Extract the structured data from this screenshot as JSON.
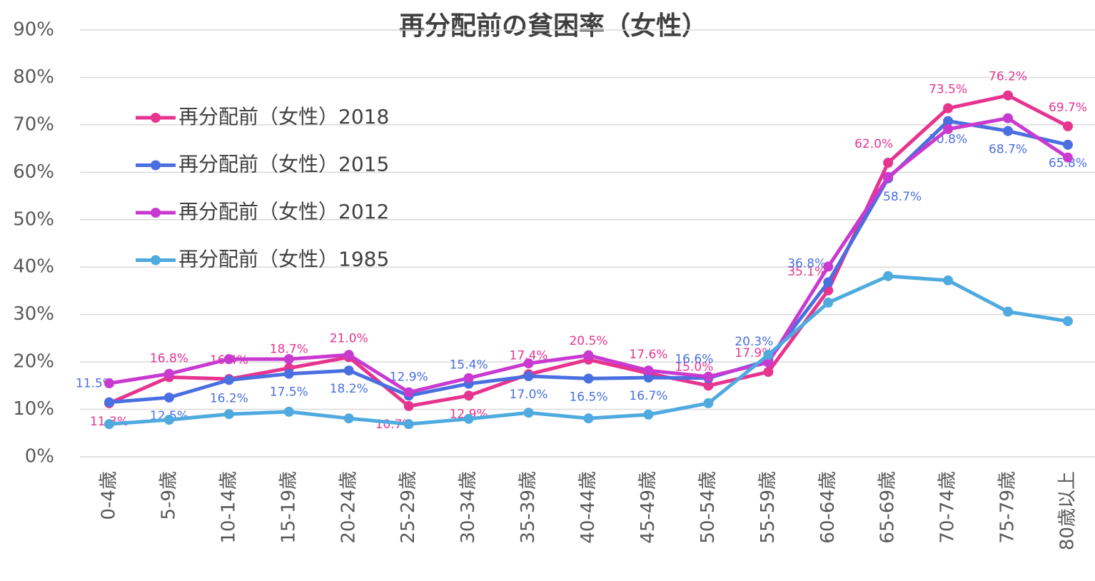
{
  "chart_data": {
    "type": "line",
    "title": "再分配前の貧困率（女性）",
    "categories": [
      "0-4歳",
      "5-9歳",
      "10-14歳",
      "15-19歳",
      "20-24歳",
      "25-29歳",
      "30-34歳",
      "35-39歳",
      "40-44歳",
      "45-49歳",
      "50-54歳",
      "55-59歳",
      "60-64歳",
      "65-69歳",
      "70-74歳",
      "75-79歳",
      "80歳以上"
    ],
    "series": [
      {
        "name": "再分配前（女性）2018",
        "color": "#e6348f",
        "values": [
          11.3,
          16.8,
          16.4,
          18.7,
          21.0,
          10.7,
          12.9,
          17.4,
          20.5,
          17.6,
          15.0,
          17.9,
          35.1,
          62.0,
          73.5,
          76.2,
          69.7
        ],
        "value_labels": [
          "11.3%",
          "16.8%",
          "16.4%",
          "18.7%",
          "21.0%",
          "10.7%",
          "12.9%",
          "17.4%",
          "20.5%",
          "17.6%",
          "15.0%",
          "17.9%",
          "35.1%",
          "62.0%",
          "73.5%",
          "76.2%",
          "69.7%"
        ]
      },
      {
        "name": "再分配前（女性）2015",
        "color": "#4a6fe0",
        "values": [
          11.5,
          12.5,
          16.2,
          17.5,
          18.2,
          12.9,
          15.4,
          17.0,
          16.5,
          16.7,
          16.6,
          20.3,
          36.8,
          58.7,
          70.8,
          68.7,
          65.8
        ],
        "value_labels": [
          "11.5%",
          "12.5%",
          "16.2%",
          "17.5%",
          "18.2%",
          "12.9%",
          "15.4%",
          "17.0%",
          "16.5%",
          "16.7%",
          "16.6%",
          "20.3%",
          "36.8%",
          "58.7%",
          "70.8%",
          "68.7%",
          "65.8%"
        ]
      },
      {
        "name": "再分配前（女性）2012",
        "color": "#c93ad0",
        "values": [
          15.5,
          17.5,
          20.6,
          20.6,
          21.5,
          13.6,
          16.6,
          19.7,
          21.4,
          18.2,
          16.9,
          19.9,
          40.1,
          59.0,
          69.1,
          71.4,
          63.1
        ]
      },
      {
        "name": "再分配前（女性）1985",
        "color": "#4eaadf",
        "values": [
          6.9,
          7.8,
          9.0,
          9.5,
          8.1,
          6.9,
          8.0,
          9.3,
          8.1,
          8.9,
          11.3,
          21.5,
          32.5,
          38.1,
          37.2,
          30.6,
          28.6
        ]
      }
    ],
    "ylim": [
      0,
      90
    ],
    "yticks": [
      {
        "value": 0,
        "label": "0%"
      },
      {
        "value": 10,
        "label": "10%"
      },
      {
        "value": 20,
        "label": "20%"
      },
      {
        "value": 30,
        "label": "30%"
      },
      {
        "value": 40,
        "label": "40%"
      },
      {
        "value": 50,
        "label": "50%"
      },
      {
        "value": 60,
        "label": "60%"
      },
      {
        "value": 70,
        "label": "70%"
      },
      {
        "value": 80,
        "label": "80%"
      },
      {
        "value": 90,
        "label": "90%"
      }
    ],
    "grid": true,
    "legend": "upper-left"
  }
}
